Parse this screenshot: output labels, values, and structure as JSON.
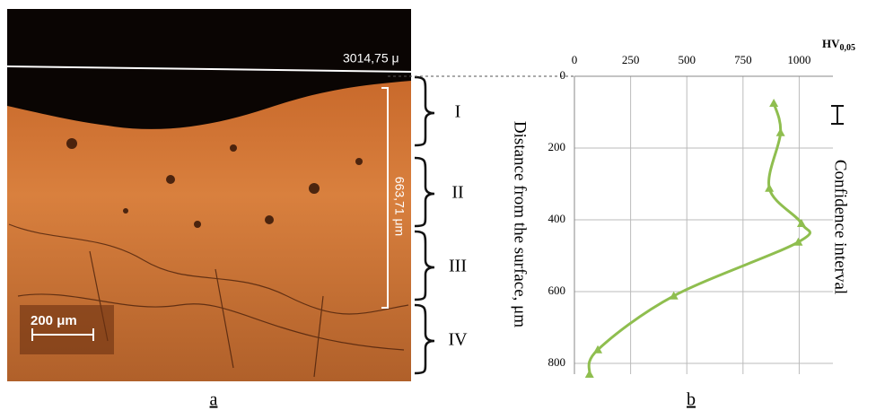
{
  "figure": {
    "micrograph": {
      "top_label": "3014,75 μ",
      "depth_label": "663,71 μm",
      "scale_label": "200 μm",
      "zones": [
        "I",
        "II",
        "III",
        "IV"
      ],
      "caption": "a"
    },
    "chart_data": {
      "type": "line",
      "x_label_main": "HV",
      "x_label_sub": "0,05",
      "y_label": "Distance from the surface, μm",
      "legend_label": "Confidence interval",
      "caption": "b",
      "x": [
        887,
        917,
        867,
        1010,
        996,
        442,
        104,
        67
      ],
      "series": [
        {
          "color": "#8fbe4f",
          "values": [
            75,
            157,
            312,
            410,
            462,
            612,
            762,
            830
          ]
        }
      ],
      "xlim": [
        0,
        1150
      ],
      "ylim": [
        0,
        830
      ],
      "xticks": [
        0,
        250,
        500,
        750,
        1000
      ],
      "yticks": [
        0,
        200,
        400,
        600,
        800
      ],
      "grid": true
    }
  }
}
